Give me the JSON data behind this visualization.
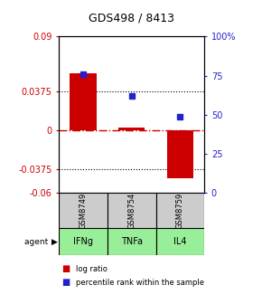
{
  "title": "GDS498 / 8413",
  "samples": [
    "GSM8749",
    "GSM8754",
    "GSM8759"
  ],
  "agents": [
    "IFNg",
    "TNFa",
    "IL4"
  ],
  "log_ratios": [
    0.055,
    0.003,
    -0.046
  ],
  "percentile_ranks": [
    76,
    62,
    49
  ],
  "ylim_left": [
    -0.06,
    0.09
  ],
  "ylim_right": [
    0,
    100
  ],
  "yticks_left": [
    0.09,
    0.0375,
    0,
    -0.0375,
    -0.06
  ],
  "ytick_labels_left": [
    "0.09",
    "0.0375",
    "0",
    "-0.0375",
    "-0.06"
  ],
  "yticks_right": [
    100,
    75,
    50,
    25,
    0
  ],
  "ytick_labels_right": [
    "100%",
    "75",
    "50",
    "25",
    "0"
  ],
  "hline_dotted": [
    0.0375,
    -0.0375
  ],
  "hline_dashdot": 0,
  "bar_color": "#cc0000",
  "dot_color": "#2222cc",
  "agent_bg_color": "#99ee99",
  "sample_bg_color": "#cccccc",
  "bar_width": 0.55,
  "legend_log_ratio_color": "#cc0000",
  "legend_percentile_color": "#2222cc",
  "left_tick_color": "#cc0000",
  "right_tick_color": "#2222cc",
  "zero_line_color": "#cc0000",
  "title_fontsize": 9,
  "tick_fontsize": 7,
  "sample_fontsize": 6,
  "agent_fontsize": 7,
  "legend_fontsize": 6
}
